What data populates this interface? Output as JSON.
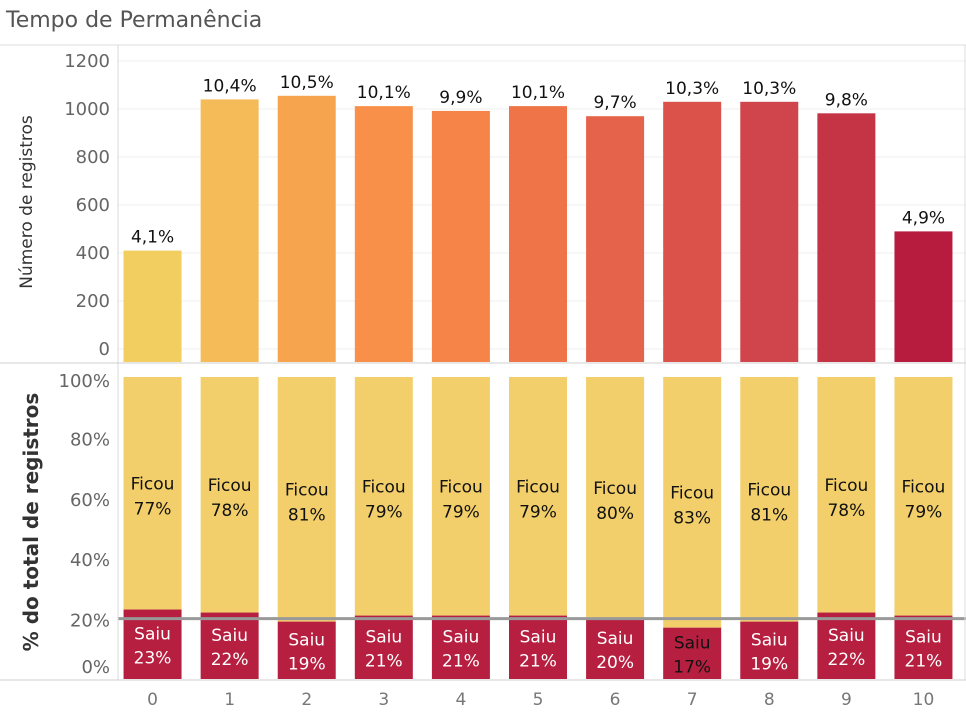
{
  "title": "Tempo de Permanência",
  "chart_data": [
    {
      "type": "bar",
      "categories": [
        "0",
        "1",
        "2",
        "3",
        "4",
        "5",
        "6",
        "7",
        "8",
        "9",
        "10"
      ],
      "values": [
        410,
        1040,
        1055,
        1012,
        992,
        1012,
        970,
        1030,
        1030,
        982,
        490
      ],
      "data_labels": [
        "4,1%",
        "10,4%",
        "10,5%",
        "10,1%",
        "9,9%",
        "10,1%",
        "9,7%",
        "10,3%",
        "10,3%",
        "9,8%",
        "4,9%"
      ],
      "ylabel": "Número de registros",
      "yticks": [
        "0",
        "200",
        "400",
        "600",
        "800",
        "1000",
        "1200"
      ],
      "ylim": [
        0,
        1200
      ],
      "colors": [
        "#f2cd5f",
        "#f5bb58",
        "#f7a44e",
        "#f89049",
        "#f68448",
        "#ef7548",
        "#e5634a",
        "#db524a",
        "#d0454b",
        "#c43445",
        "#b71c3e"
      ],
      "grid": true
    },
    {
      "type": "bar",
      "stacked": true,
      "percent": true,
      "categories": [
        "0",
        "1",
        "2",
        "3",
        "4",
        "5",
        "6",
        "7",
        "8",
        "9",
        "10"
      ],
      "series": [
        {
          "name": "Saiu",
          "values": [
            23,
            22,
            19,
            21,
            21,
            21,
            20,
            17,
            19,
            22,
            21
          ],
          "labels": [
            "23%",
            "22%",
            "19%",
            "21%",
            "21%",
            "21%",
            "20%",
            "17%",
            "19%",
            "22%",
            "21%"
          ],
          "color": "#b61f40"
        },
        {
          "name": "Ficou",
          "values": [
            77,
            78,
            81,
            79,
            79,
            79,
            80,
            83,
            81,
            78,
            79
          ],
          "labels": [
            "77%",
            "78%",
            "81%",
            "79%",
            "79%",
            "79%",
            "80%",
            "83%",
            "81%",
            "78%",
            "79%"
          ],
          "color": "#f2cf6a"
        }
      ],
      "ylabel": "% do total  de registros",
      "yticks": [
        "0%",
        "20%",
        "40%",
        "60%",
        "80%",
        "100%"
      ],
      "ylim": [
        0,
        100
      ],
      "reference_line": 20,
      "reference_color": "#999999"
    }
  ]
}
